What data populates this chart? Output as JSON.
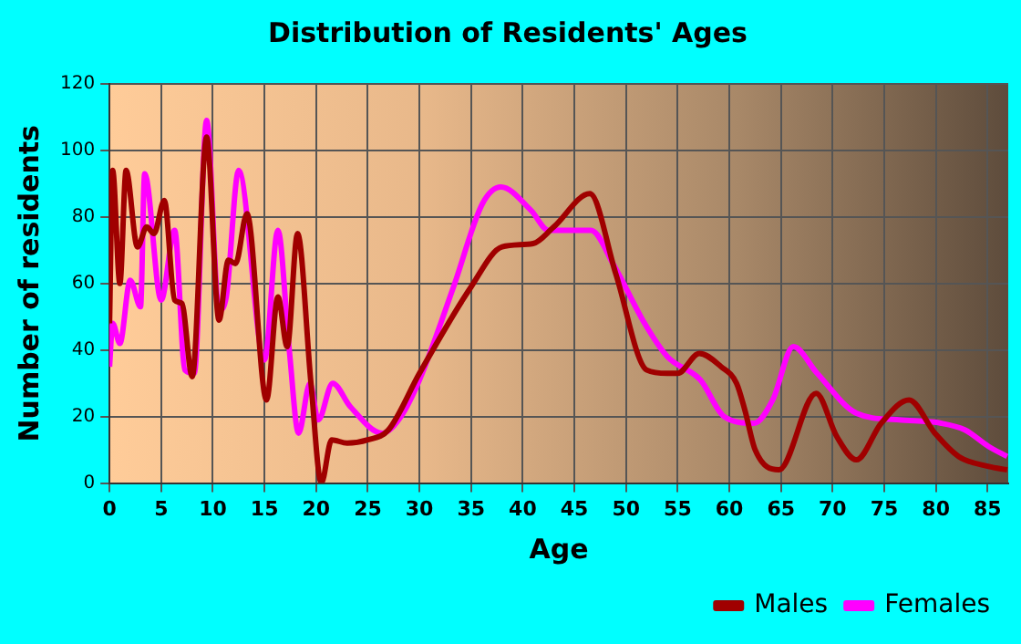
{
  "chart_data": {
    "type": "line",
    "title": "Distribution of Residents' Ages",
    "xlabel": "Age",
    "ylabel": "Number of residents",
    "xlim": [
      0,
      87
    ],
    "xticks": [
      0,
      5,
      10,
      15,
      20,
      25,
      30,
      35,
      40,
      45,
      50,
      55,
      60,
      65,
      70,
      75,
      80,
      85
    ],
    "ylim": [
      0,
      120
    ],
    "yticks": [
      0,
      20,
      40,
      60,
      80,
      100,
      120
    ],
    "grid": true,
    "legend": "bottom right",
    "marker": "none",
    "line_style": "solid",
    "series": [
      {
        "name": "Males",
        "color": "#a00000",
        "x": [
          0,
          0.3,
          1,
          1.6,
          2.7,
          3.6,
          4.3,
          5.3,
          6.3,
          7,
          8,
          9.4,
          10.6,
          11.5,
          12.2,
          13.3,
          15.2,
          16.3,
          17.2,
          18.2,
          19.5,
          20.5,
          21.5,
          23,
          25,
          27,
          30,
          35,
          38,
          41,
          43,
          46.5,
          49,
          52,
          54,
          55,
          57.1,
          59.2,
          60.7,
          61.5,
          62.5,
          64.8,
          68.4,
          70.4,
          72.3,
          74.7,
          77.4,
          79.9,
          82.2,
          85.1,
          86.9
        ],
        "values": [
          48,
          94,
          60,
          94,
          71,
          77,
          75,
          85,
          55,
          54,
          32,
          104,
          49,
          67,
          66,
          81,
          25,
          56,
          41,
          75,
          30,
          0,
          13,
          12,
          13,
          16,
          33,
          59,
          71,
          72,
          77,
          87,
          63,
          34,
          33,
          33,
          39,
          35,
          30,
          22,
          10,
          4,
          27,
          14,
          7,
          18,
          25,
          15,
          8,
          5,
          4
        ]
      },
      {
        "name": "Females",
        "color": "#ff00ff",
        "x": [
          0,
          0.3,
          1,
          2,
          3,
          3.4,
          5,
          6.3,
          7.3,
          8.2,
          9.4,
          10.6,
          11.3,
          12.5,
          15,
          16.3,
          17.4,
          18.3,
          19.4,
          20.2,
          21.6,
          23.3,
          26.4,
          28.2,
          30,
          33.3,
          36.1,
          37.9,
          40.8,
          42.5,
          44.8,
          46.6,
          48.9,
          51.8,
          54,
          57.2,
          59.5,
          62.4,
          64.2,
          66.2,
          68.5,
          72.3,
          76.4,
          80.5,
          82.8,
          85.1,
          86.9
        ],
        "values": [
          35,
          48,
          42,
          61,
          53,
          93,
          55,
          76,
          34,
          33,
          109,
          52,
          56,
          94,
          37,
          76,
          40,
          15,
          30,
          19,
          30,
          23,
          15,
          20,
          31,
          59,
          84,
          89,
          82,
          76,
          76,
          76,
          65,
          48,
          38,
          31,
          20,
          18,
          25,
          41,
          33,
          21,
          19,
          18,
          16,
          11,
          8
        ]
      }
    ]
  }
}
